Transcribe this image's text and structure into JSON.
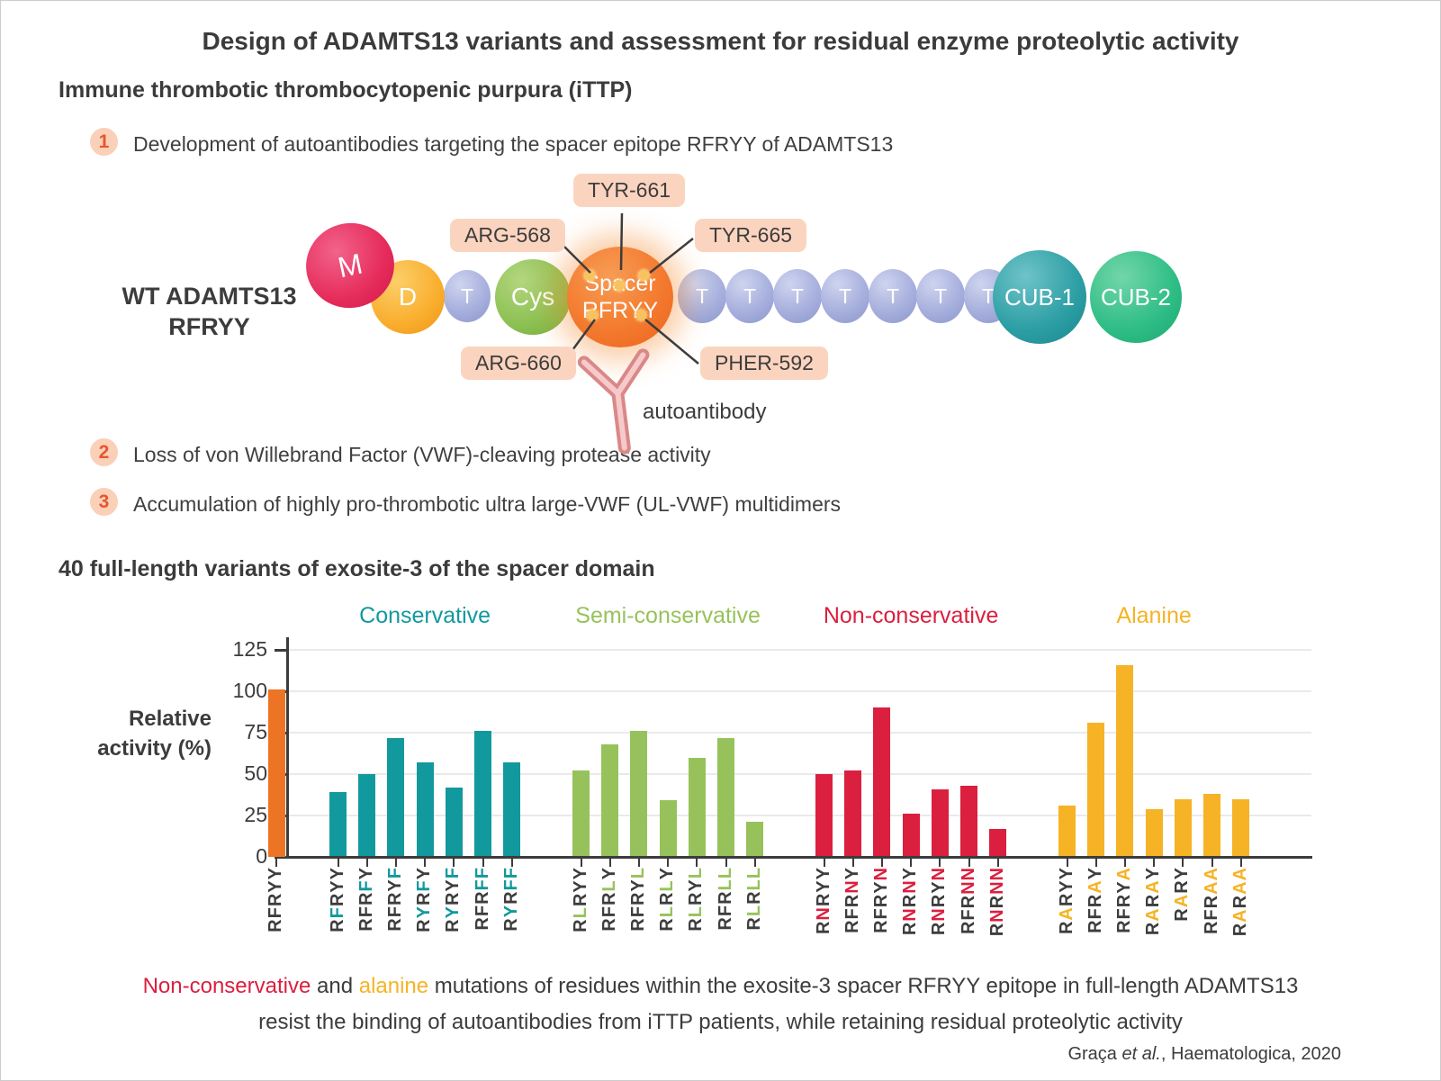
{
  "title": "Design of ADAMTS13 variants and assessment for residual enzyme proteolytic activity",
  "section1": {
    "heading": "Immune thrombotic thrombocytopenic purpura (iTTP)",
    "steps": [
      {
        "num": "1",
        "text": "Development of autoantibodies targeting the spacer epitope RFRYY of ADAMTS13"
      },
      {
        "num": "2",
        "text": "Loss of von Willebrand Factor (VWF)-cleaving protease activity"
      },
      {
        "num": "3",
        "text": "Accumulation of highly pro-thrombotic ultra large-VWF (UL-VWF) multidimers"
      }
    ]
  },
  "diagram": {
    "wt_label": [
      "WT ADAMTS13",
      "RFRYY"
    ],
    "domain_m": "M",
    "domain_d": "D",
    "domain_t": "T",
    "domain_cys": "Cys",
    "spacer_line1": "Spacer",
    "spacer_line2": "RFRYY",
    "cub1": "CUB-1",
    "cub2": "CUB-2",
    "callouts": {
      "arg568": "ARG-568",
      "tyr661": "TYR-661",
      "tyr665": "TYR-665",
      "arg660": "ARG-660",
      "pher592": "PHER-592"
    },
    "autoantibody": "autoantibody",
    "colors": {
      "m": "#e62c5b",
      "d": "#f9ae2e",
      "t": "#a7b0dd",
      "cys": "#8cc153",
      "spacer": "#f37b2f",
      "cub1": "#2b9ea4",
      "cub2": "#2ebd85",
      "callout_bg": "#fbd4bf",
      "badge_bg": "#fad0b8",
      "badge_text": "#e4572e",
      "antibody": "#d98888"
    }
  },
  "section2_heading": "40 full-length variants of exosite-3 of the spacer domain",
  "chart_data": {
    "type": "bar",
    "ylabel": "Relative activity (%)",
    "ylabel_line1": "Relative",
    "ylabel_line2": "activity (%)",
    "yticks": [
      0,
      25,
      50,
      75,
      100,
      125
    ],
    "ylim": [
      0,
      125
    ],
    "grid": true,
    "wt": {
      "label": "RFRYY",
      "value": 101,
      "color": "#ee7425",
      "highlight": []
    },
    "groups": [
      {
        "name": "Conservative",
        "color": "#12999e",
        "bars": [
          {
            "label": "RFRYY",
            "value": 39,
            "highlight": [
              1
            ]
          },
          {
            "label": "RFRFY",
            "value": 50,
            "highlight": [
              3
            ]
          },
          {
            "label": "RFRYF",
            "value": 72,
            "highlight": [
              4
            ]
          },
          {
            "label": "RYRFY",
            "value": 57,
            "highlight": [
              1,
              3
            ]
          },
          {
            "label": "RYRYF",
            "value": 42,
            "highlight": [
              1,
              4
            ]
          },
          {
            "label": "RFRFF",
            "value": 76,
            "highlight": [
              3,
              4
            ]
          },
          {
            "label": "RYRFF",
            "value": 57,
            "highlight": [
              1,
              3,
              4
            ]
          }
        ]
      },
      {
        "name": "Semi-conservative",
        "color": "#97c25b",
        "bars": [
          {
            "label": "RLRYY",
            "value": 52,
            "highlight": [
              1
            ]
          },
          {
            "label": "RFRLY",
            "value": 68,
            "highlight": [
              3
            ]
          },
          {
            "label": "RFRYL",
            "value": 76,
            "highlight": [
              4
            ]
          },
          {
            "label": "RLRLY",
            "value": 34,
            "highlight": [
              1,
              3
            ]
          },
          {
            "label": "RLRYL",
            "value": 60,
            "highlight": [
              1,
              4
            ]
          },
          {
            "label": "RFRLL",
            "value": 72,
            "highlight": [
              3,
              4
            ]
          },
          {
            "label": "RLRLL",
            "value": 21,
            "highlight": [
              1,
              3,
              4
            ]
          }
        ]
      },
      {
        "name": "Non-conservative",
        "color": "#db1f3f",
        "bars": [
          {
            "label": "RNRYY",
            "value": 50,
            "highlight": [
              1
            ]
          },
          {
            "label": "RFRNY",
            "value": 52,
            "highlight": [
              3
            ]
          },
          {
            "label": "RFRYN",
            "value": 90,
            "highlight": [
              4
            ]
          },
          {
            "label": "RNRNY",
            "value": 26,
            "highlight": [
              1,
              3
            ]
          },
          {
            "label": "RNRYN",
            "value": 41,
            "highlight": [
              1,
              4
            ]
          },
          {
            "label": "RFRNN",
            "value": 43,
            "highlight": [
              3,
              4
            ]
          },
          {
            "label": "RNRNN",
            "value": 17,
            "highlight": [
              1,
              3,
              4
            ]
          }
        ]
      },
      {
        "name": "Alanine",
        "color": "#f5b325",
        "bars": [
          {
            "label": "RARYY",
            "value": 31,
            "highlight": [
              1
            ]
          },
          {
            "label": "RFRAY",
            "value": 81,
            "highlight": [
              3
            ]
          },
          {
            "label": "RFRYA",
            "value": 116,
            "highlight": [
              4
            ]
          },
          {
            "label": "RARAY",
            "value": 29,
            "highlight": [
              1,
              3
            ]
          },
          {
            "label": "RARY",
            "value": 35,
            "highlight": [
              1
            ]
          },
          {
            "label": "RFRAA",
            "value": 38,
            "highlight": [
              3,
              4
            ]
          },
          {
            "label": "RARAA",
            "value": 35,
            "highlight": [
              1,
              3,
              4
            ]
          }
        ]
      }
    ]
  },
  "caption": {
    "line1": [
      {
        "text": "Non-conservative",
        "color": "#db1f3f"
      },
      {
        "text": " and ",
        "color": "#3c3c3c"
      },
      {
        "text": "alanine",
        "color": "#f5b325"
      },
      {
        "text": " mutations of residues within the exosite-3 spacer RFRYY epitope in full-length ADAMTS13",
        "color": "#3c3c3c"
      }
    ],
    "line2": [
      {
        "text": "resist the binding of autoantibodies from iTTP patients, while retaining residual proteolytic activity",
        "color": "#3c3c3c"
      }
    ]
  },
  "citation": {
    "pre": "Graça ",
    "italic": "et al.",
    "post": ", Haematologica, 2020"
  }
}
